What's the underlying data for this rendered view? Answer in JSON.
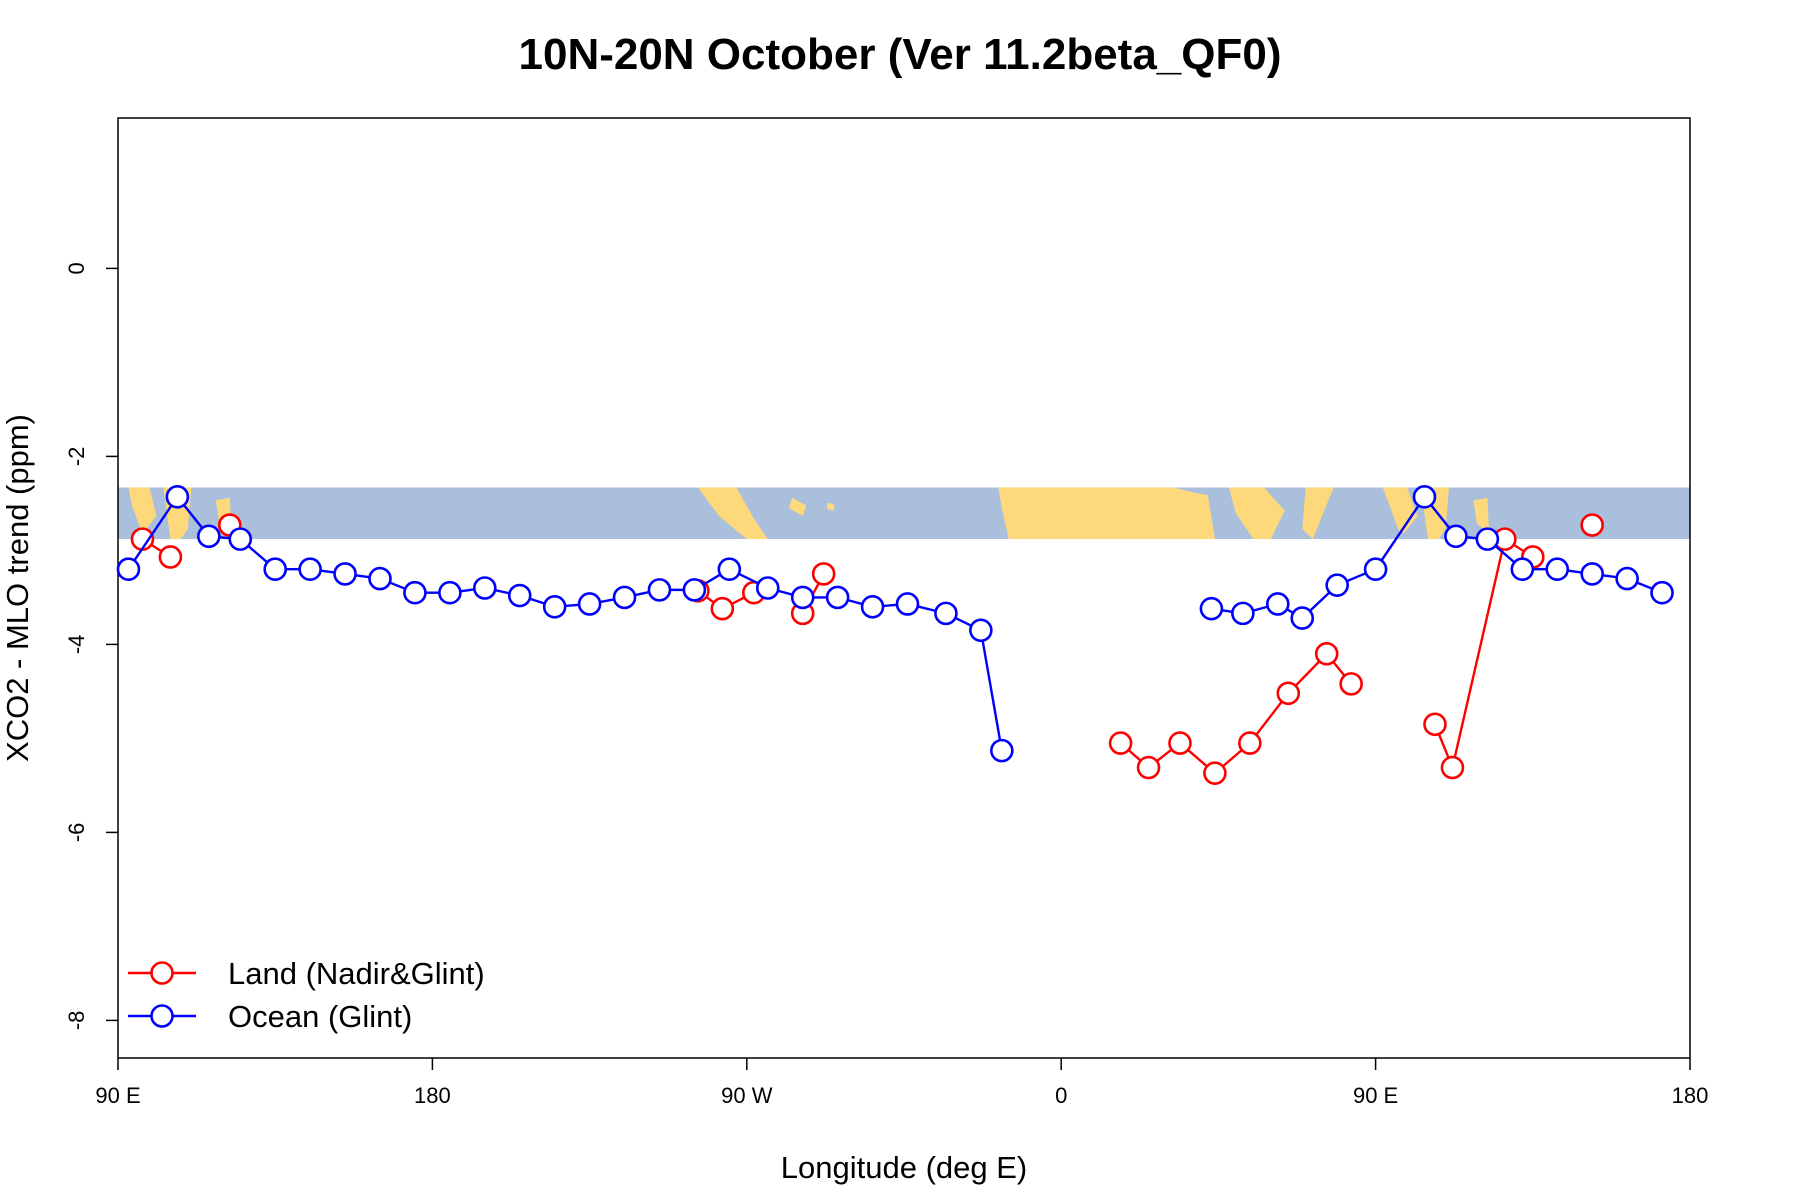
{
  "chart_data": {
    "type": "line",
    "title": "10N-20N October (Ver 11.2beta_QF0)",
    "xlabel": "Longitude (deg E)",
    "ylabel": "XCO2 - MLO trend (ppm)",
    "xlim": [
      90,
      540
    ],
    "ylim": [
      -8.4,
      1.6
    ],
    "x_ticks": [
      {
        "value": 90,
        "label": "90 E"
      },
      {
        "value": 180,
        "label": "180"
      },
      {
        "value": 270,
        "label": "90 W"
      },
      {
        "value": 360,
        "label": "0"
      },
      {
        "value": 450,
        "label": "90 E"
      },
      {
        "value": 540,
        "label": "180"
      }
    ],
    "y_ticks": [
      {
        "value": 0,
        "label": "0"
      },
      {
        "value": -2,
        "label": "-2"
      },
      {
        "value": -4,
        "label": "-4"
      },
      {
        "value": -6,
        "label": "-6"
      },
      {
        "value": -8,
        "label": "-8"
      }
    ],
    "grid": false,
    "legend_position": "bottom-left",
    "map_strip": {
      "y_top": -2.33,
      "y_bottom": -2.88,
      "ocean_color": "#A9BFDC",
      "land_color": "#FDD97B"
    },
    "series": [
      {
        "name": "Land (Nadir&Glint)",
        "color": "#FF0000",
        "segments": [
          [
            [
              97,
              -2.88
            ],
            [
              105,
              -3.07
            ]
          ],
          [
            [
              122,
              -2.73
            ]
          ],
          [
            [
              256,
              -3.43
            ],
            [
              263,
              -3.62
            ],
            [
              272,
              -3.45
            ]
          ],
          [
            [
              286,
              -3.67
            ],
            [
              292,
              -3.25
            ]
          ],
          [
            [
              377,
              -5.05
            ],
            [
              385,
              -5.31
            ],
            [
              394,
              -5.05
            ],
            [
              404,
              -5.37
            ],
            [
              414,
              -5.05
            ],
            [
              425,
              -4.52
            ],
            [
              436,
              -4.1
            ],
            [
              443,
              -4.42
            ]
          ],
          [
            [
              467,
              -4.85
            ],
            [
              472,
              -5.31
            ],
            [
              487,
              -2.88
            ],
            [
              495,
              -3.07
            ]
          ],
          [
            [
              512,
              -2.73
            ]
          ]
        ]
      },
      {
        "name": "Ocean (Glint)",
        "color": "#0000FF",
        "segments": [
          [
            [
              93,
              -3.2
            ],
            [
              107,
              -2.43
            ],
            [
              116,
              -2.85
            ],
            [
              125,
              -2.88
            ],
            [
              135,
              -3.2
            ],
            [
              145,
              -3.2
            ],
            [
              155,
              -3.25
            ],
            [
              165,
              -3.3
            ],
            [
              175,
              -3.45
            ],
            [
              185,
              -3.45
            ],
            [
              195,
              -3.4
            ],
            [
              205,
              -3.48
            ],
            [
              215,
              -3.6
            ],
            [
              225,
              -3.57
            ],
            [
              235,
              -3.5
            ],
            [
              245,
              -3.42
            ],
            [
              255,
              -3.42
            ],
            [
              265,
              -3.2
            ],
            [
              276,
              -3.4
            ],
            [
              286,
              -3.5
            ],
            [
              296,
              -3.5
            ],
            [
              306,
              -3.6
            ],
            [
              316,
              -3.57
            ],
            [
              327,
              -3.67
            ],
            [
              337,
              -3.85
            ],
            [
              343,
              -5.13
            ]
          ],
          [
            [
              403,
              -3.62
            ],
            [
              412,
              -3.67
            ],
            [
              422,
              -3.57
            ],
            [
              429,
              -3.72
            ],
            [
              439,
              -3.37
            ],
            [
              450,
              -3.2
            ],
            [
              464,
              -2.43
            ],
            [
              473,
              -2.85
            ],
            [
              482,
              -2.88
            ],
            [
              492,
              -3.2
            ],
            [
              502,
              -3.2
            ],
            [
              512,
              -3.25
            ],
            [
              522,
              -3.3
            ],
            [
              532,
              -3.45
            ]
          ]
        ]
      }
    ]
  }
}
